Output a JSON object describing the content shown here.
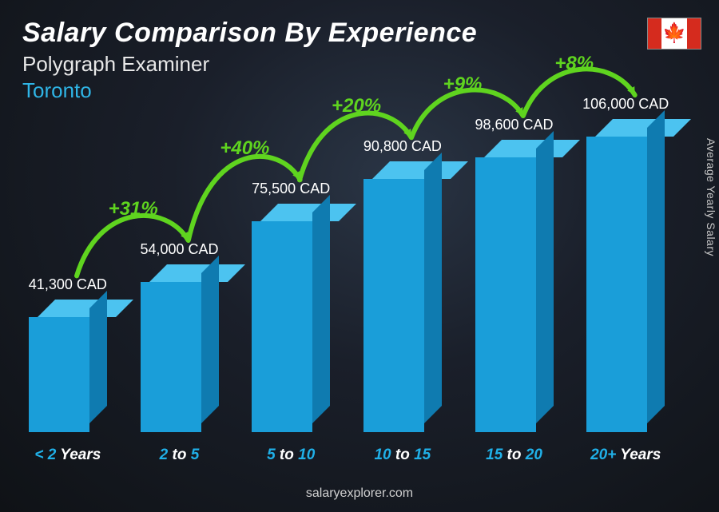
{
  "header": {
    "title": "Salary Comparison By Experience",
    "subtitle": "Polygraph Examiner",
    "location": "Toronto",
    "location_color": "#2fb5e6"
  },
  "flag": {
    "band_color": "#d52b1e",
    "leaf": "🍁",
    "leaf_color": "#d52b1e"
  },
  "chart": {
    "type": "bar",
    "max_value": 106000,
    "max_bar_height": 370,
    "bar_fill": "#1a9ed9",
    "bar_top": "#4cc3f0",
    "bar_side": "#0f7bb0",
    "xlabel_num_color": "#20b0e8",
    "arc_color": "#5fd41f",
    "arc_label_color": "#5fd41f",
    "bars": [
      {
        "xlabel_num": "< 2",
        "xlabel_unit": "Years",
        "value": 41300,
        "value_label": "41,300 CAD"
      },
      {
        "xlabel_num": "2",
        "xlabel_mid": " to ",
        "xlabel_num2": "5",
        "value": 54000,
        "value_label": "54,000 CAD"
      },
      {
        "xlabel_num": "5",
        "xlabel_mid": " to ",
        "xlabel_num2": "10",
        "value": 75500,
        "value_label": "75,500 CAD"
      },
      {
        "xlabel_num": "10",
        "xlabel_mid": " to ",
        "xlabel_num2": "15",
        "value": 90800,
        "value_label": "90,800 CAD"
      },
      {
        "xlabel_num": "15",
        "xlabel_mid": " to ",
        "xlabel_num2": "20",
        "value": 98600,
        "value_label": "98,600 CAD"
      },
      {
        "xlabel_num": "20+",
        "xlabel_unit": "Years",
        "value": 106000,
        "value_label": "106,000 CAD"
      }
    ],
    "arcs": [
      {
        "label": "+31%"
      },
      {
        "label": "+40%"
      },
      {
        "label": "+20%"
      },
      {
        "label": "+9%"
      },
      {
        "label": "+8%"
      }
    ]
  },
  "side_label": "Average Yearly Salary",
  "footer": "salaryexplorer.com"
}
